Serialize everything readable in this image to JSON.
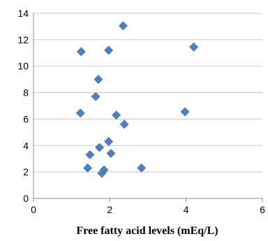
{
  "chart_data": {
    "type": "scatter",
    "title": "",
    "xlabel": "Free fatty acid levels (mEq/L)",
    "ylabel": "",
    "xlim": [
      0,
      6
    ],
    "ylim": [
      0,
      14
    ],
    "xticks": [
      0,
      2,
      4,
      6
    ],
    "yticks": [
      0,
      2,
      4,
      6,
      8,
      10,
      12,
      14
    ],
    "grid": "horizontal",
    "legend": "none",
    "marker": "diamond",
    "marker_color": "#4f81bd",
    "series": [
      {
        "points": [
          {
            "x": 1.25,
            "y": 11.1
          },
          {
            "x": 1.97,
            "y": 11.2
          },
          {
            "x": 2.35,
            "y": 13.05
          },
          {
            "x": 4.2,
            "y": 11.45
          },
          {
            "x": 1.7,
            "y": 9.0
          },
          {
            "x": 1.63,
            "y": 7.7
          },
          {
            "x": 1.23,
            "y": 6.45
          },
          {
            "x": 2.17,
            "y": 6.3
          },
          {
            "x": 3.97,
            "y": 6.55
          },
          {
            "x": 2.38,
            "y": 5.6
          },
          {
            "x": 1.97,
            "y": 4.3
          },
          {
            "x": 1.73,
            "y": 3.85
          },
          {
            "x": 1.48,
            "y": 3.3
          },
          {
            "x": 2.03,
            "y": 3.4
          },
          {
            "x": 1.42,
            "y": 2.3
          },
          {
            "x": 1.85,
            "y": 2.15
          },
          {
            "x": 1.79,
            "y": 1.9
          },
          {
            "x": 2.83,
            "y": 2.3
          }
        ]
      }
    ]
  }
}
